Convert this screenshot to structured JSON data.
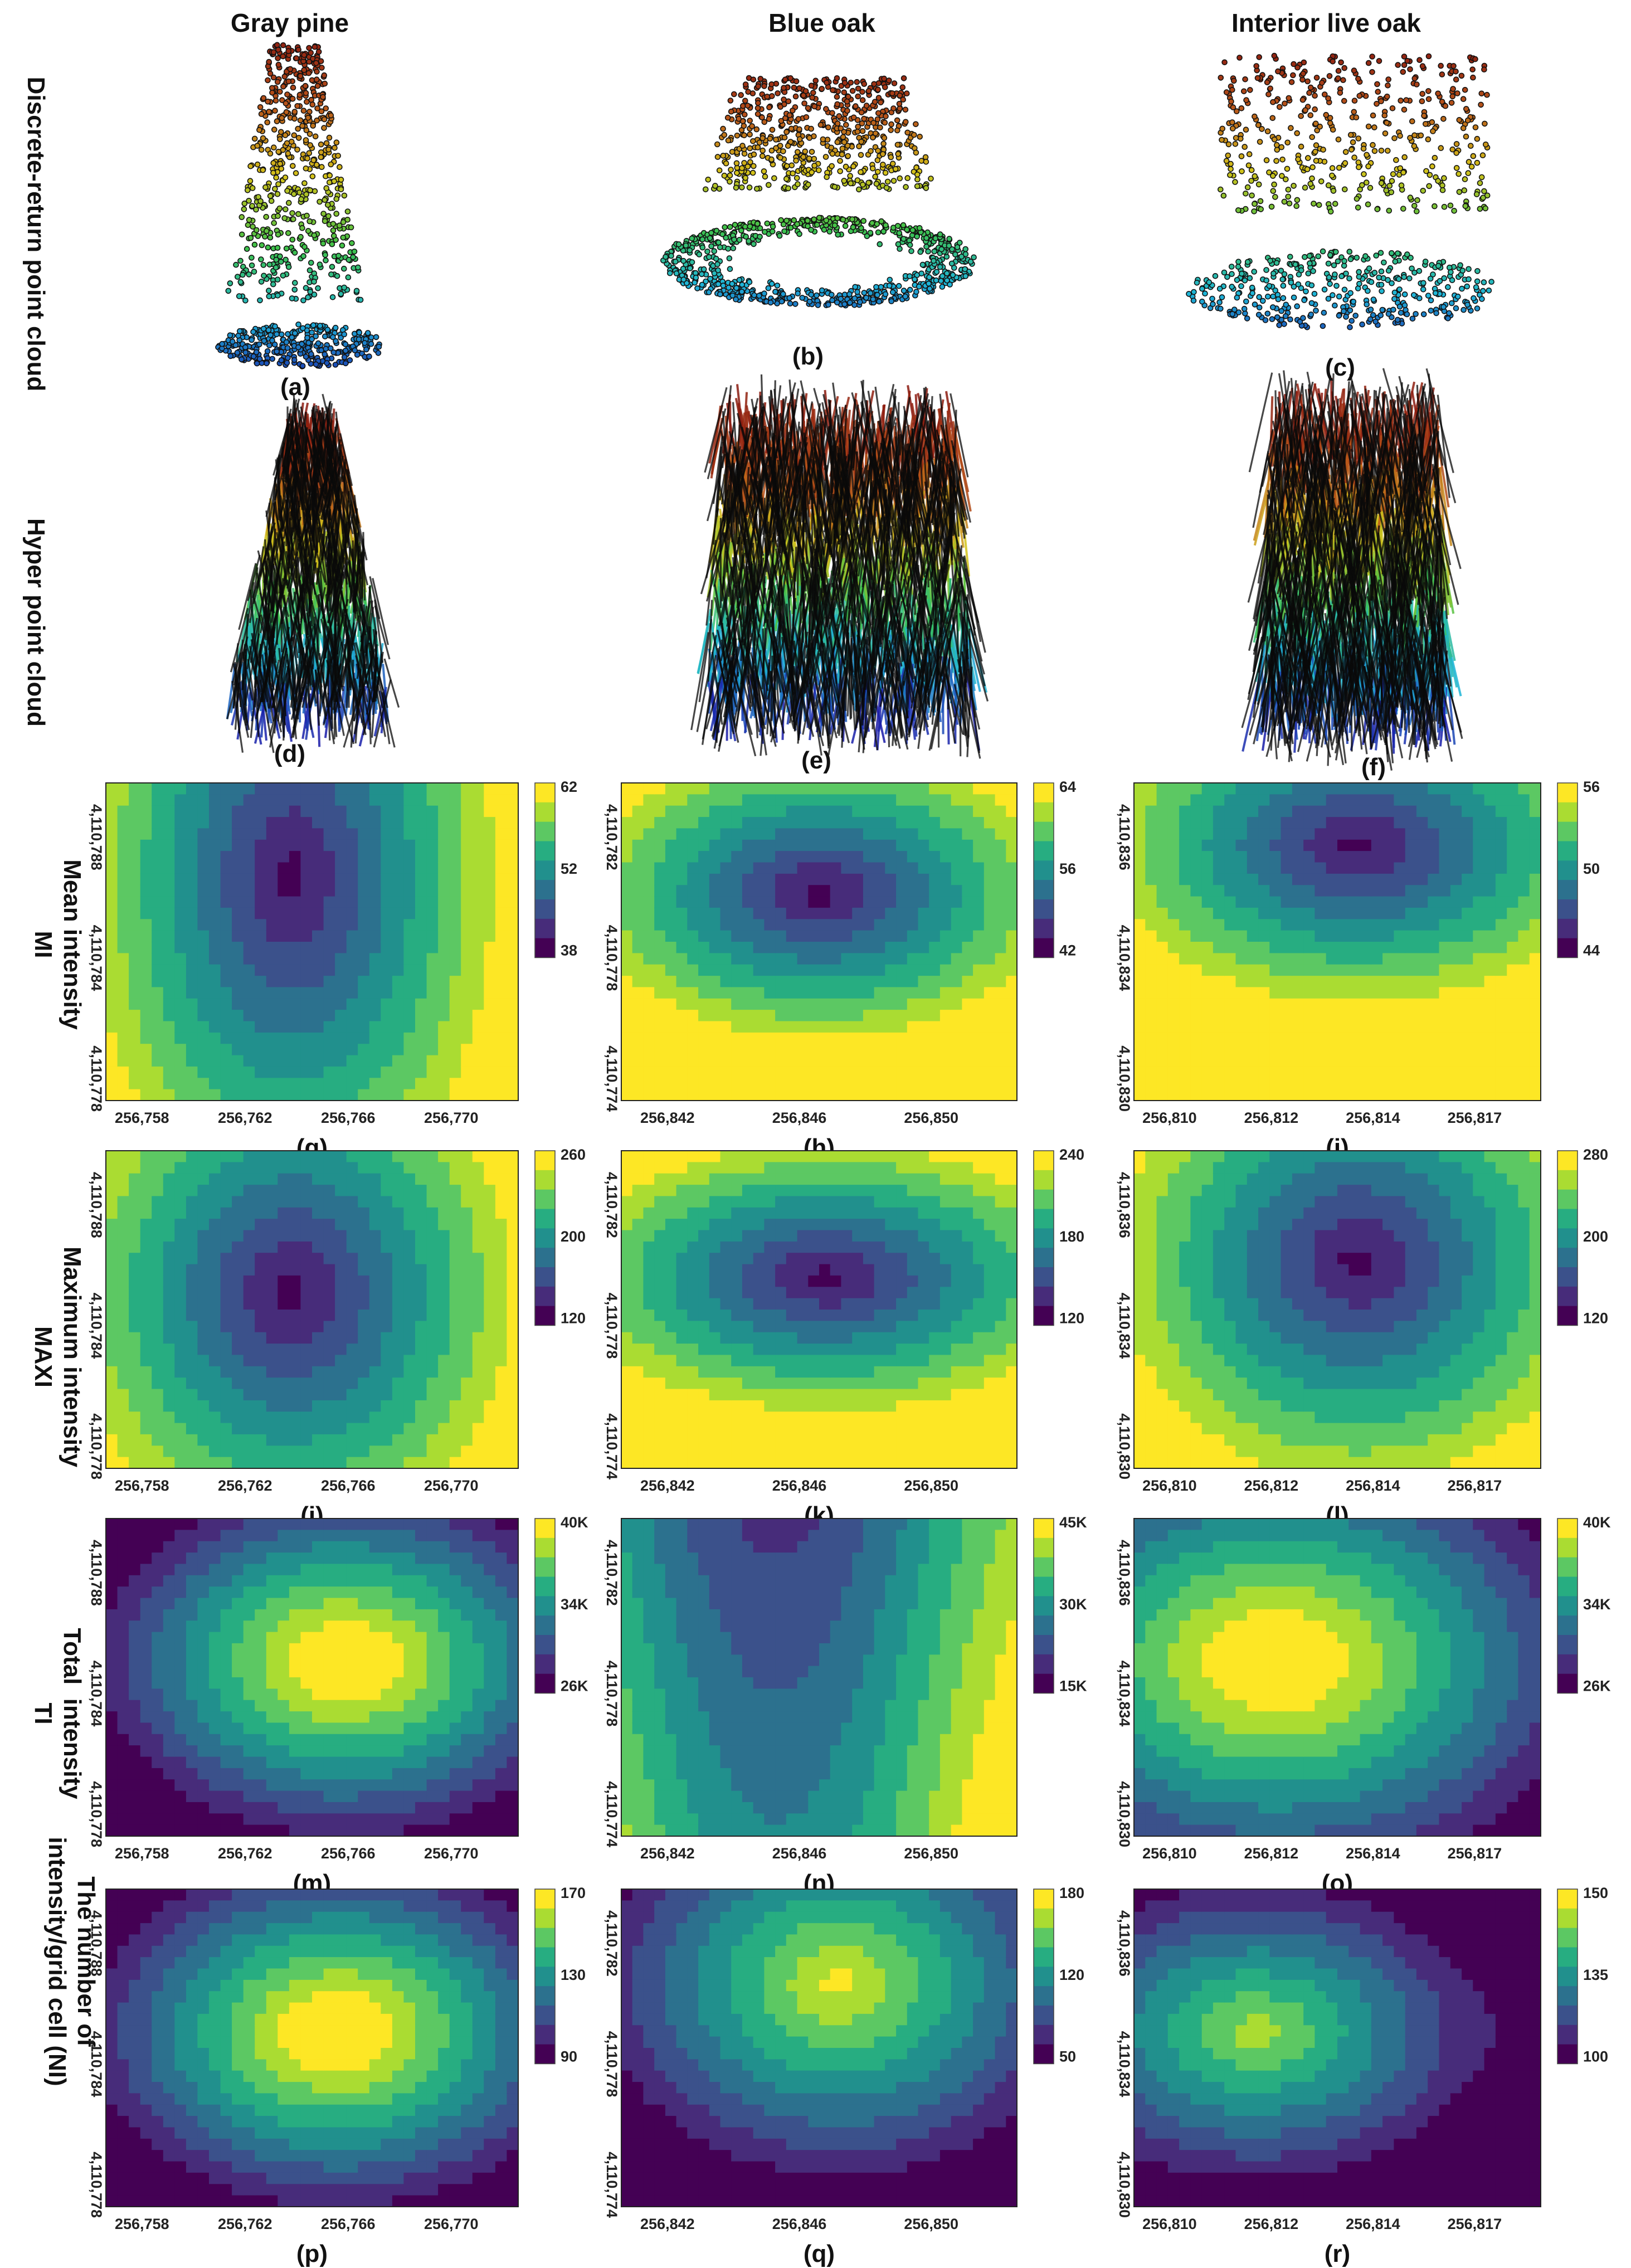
{
  "column_titles": [
    "Gray pine",
    "Blue oak",
    "Interior live oak"
  ],
  "row_titles": {
    "discrete": "Discrete-return point cloud",
    "hyper": "Hyper point cloud",
    "mi": "Mean intensity\nMI",
    "maxi": "Maximum intensity\nMAXI",
    "ti": "Total  intensity\nTI",
    "ni": "The number of\nintensity/grid cell (NI)"
  },
  "panel_labels": [
    "(a)",
    "(b)",
    "(c)",
    "(d)",
    "(e)",
    "(f)",
    "(g)",
    "(h)",
    "(i)",
    "(j)",
    "(k)",
    "(l)",
    "(m)",
    "(n)",
    "(o)",
    "(p)",
    "(q)",
    "(r)"
  ],
  "axes": {
    "gray_pine": {
      "x_ticks": [
        "256,758",
        "256,762",
        "256,766",
        "256,770"
      ],
      "y_ticks": [
        "4,110,788",
        "4,110,784",
        "4,110,778"
      ]
    },
    "blue_oak": {
      "x_ticks": [
        "256,842",
        "256,846",
        "256,850"
      ],
      "y_ticks": [
        "4,110,782",
        "4,110,778",
        "4,110,774"
      ]
    },
    "interior_live_oak": {
      "x_ticks": [
        "256,810",
        "256,812",
        "256,814",
        "256,817"
      ],
      "y_ticks": [
        "4,110,836",
        "4,110,834",
        "4,110,830"
      ]
    }
  },
  "colorbars": {
    "g": [
      "62",
      "52",
      "38"
    ],
    "h": [
      "64",
      "56",
      "42"
    ],
    "i": [
      "56",
      "50",
      "44"
    ],
    "j": [
      "260",
      "200",
      "120"
    ],
    "k": [
      "240",
      "180",
      "120"
    ],
    "l": [
      "280",
      "200",
      "120"
    ],
    "m": [
      "40K",
      "34K",
      "26K"
    ],
    "n": [
      "45K",
      "30K",
      "15K"
    ],
    "o": [
      "40K",
      "34K",
      "26K"
    ],
    "p": [
      "170",
      "130",
      "90"
    ],
    "q": [
      "180",
      "120",
      "50"
    ],
    "r": [
      "150",
      "135",
      "100"
    ]
  },
  "colors": {
    "viridis": [
      "#440154",
      "#472c7a",
      "#3b518b",
      "#2c718e",
      "#21908d",
      "#27ad81",
      "#5cc863",
      "#aadc32",
      "#fde725"
    ],
    "contour_line": "#f2e26b"
  }
}
